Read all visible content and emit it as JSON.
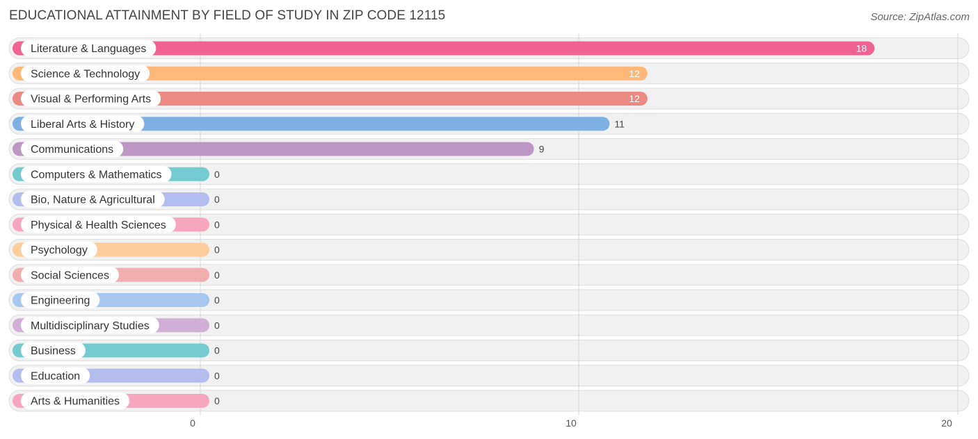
{
  "header": {
    "title": "EDUCATIONAL ATTAINMENT BY FIELD OF STUDY IN ZIP CODE 12115",
    "source": "Source: ZipAtlas.com"
  },
  "chart_data": {
    "type": "bar",
    "orientation": "horizontal",
    "title": "EDUCATIONAL ATTAINMENT BY FIELD OF STUDY IN ZIP CODE 12115",
    "xlabel": "",
    "ylabel": "",
    "xlim": [
      0,
      20
    ],
    "xticks": [
      0,
      10,
      20
    ],
    "grid": true,
    "categories": [
      "Literature & Languages",
      "Science & Technology",
      "Visual & Performing Arts",
      "Liberal Arts & History",
      "Communications",
      "Computers & Mathematics",
      "Bio, Nature & Agricultural",
      "Physical & Health Sciences",
      "Psychology",
      "Social Sciences",
      "Engineering",
      "Multidisciplinary Studies",
      "Business",
      "Education",
      "Arts & Humanities"
    ],
    "values": [
      18,
      12,
      12,
      11,
      9,
      0,
      0,
      0,
      0,
      0,
      0,
      0,
      0,
      0,
      0
    ],
    "colors": [
      "#f06292",
      "#ffb878",
      "#ea8a82",
      "#7fb0e3",
      "#bd98c5",
      "#73cbcf",
      "#b3bdee",
      "#f7a6c0",
      "#ffcc9c",
      "#f0aeae",
      "#a7c8ee",
      "#d1b0d8",
      "#73cbcf",
      "#b3bdee",
      "#f7a6c0"
    ]
  }
}
